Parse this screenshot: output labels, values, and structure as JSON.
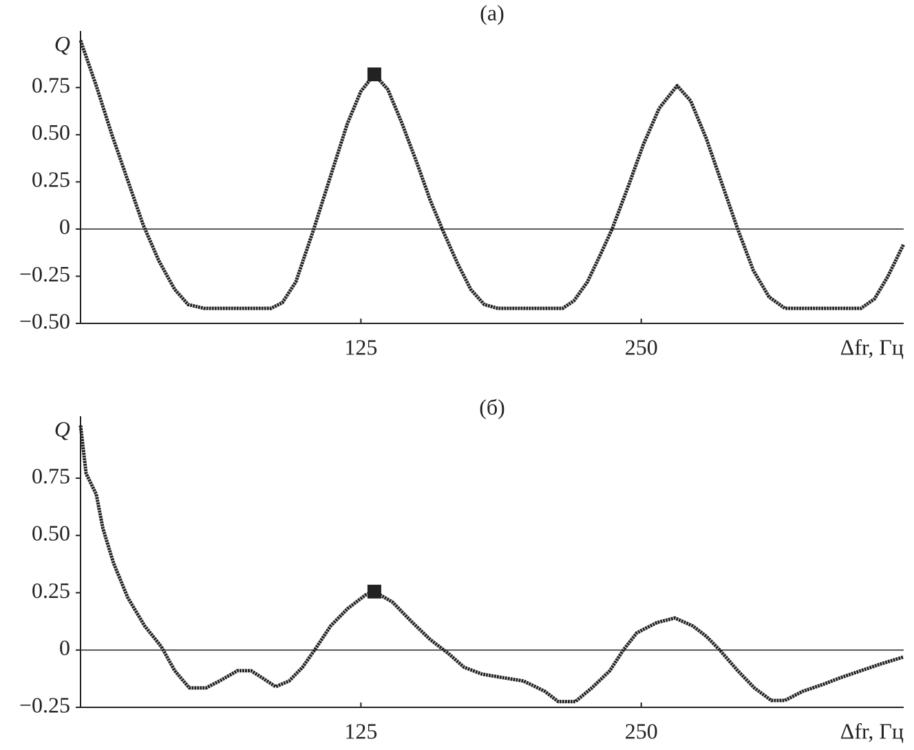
{
  "chart_data": [
    {
      "type": "line",
      "title": "(a)",
      "y_label": "Q",
      "x_label": "Δfr, Гц",
      "color": "#222222",
      "zero_line": true,
      "grid": false,
      "xlim": [
        0,
        367
      ],
      "xticks": [
        125,
        250
      ],
      "ylim": [
        -0.5,
        1.05
      ],
      "yticks": [
        {
          "value": -0.5,
          "label": "−0.50"
        },
        {
          "value": -0.25,
          "label": "−0.25"
        },
        0,
        0.25,
        {
          "value": 0.5,
          "label": "0.50"
        },
        0.75
      ],
      "x": [
        0,
        7,
        14,
        21,
        28,
        35,
        42,
        48,
        55,
        70,
        85,
        90,
        96,
        104,
        112,
        119,
        125,
        131,
        137,
        143,
        150,
        156,
        162,
        168,
        174,
        180,
        186,
        200,
        215,
        220,
        226,
        232,
        237,
        244,
        251,
        258,
        266,
        272,
        279,
        286,
        293,
        300,
        307,
        314,
        330,
        348,
        354,
        360,
        367
      ],
      "values": [
        1.0,
        0.76,
        0.5,
        0.26,
        0.02,
        -0.17,
        -0.32,
        -0.4,
        -0.42,
        -0.42,
        -0.42,
        -0.39,
        -0.28,
        0,
        0.3,
        0.56,
        0.73,
        0.82,
        0.74,
        0.57,
        0.35,
        0.15,
        -0.02,
        -0.18,
        -0.32,
        -0.4,
        -0.42,
        -0.42,
        -0.42,
        -0.38,
        -0.28,
        -0.13,
        0,
        0.22,
        0.45,
        0.64,
        0.76,
        0.68,
        0.48,
        0.24,
        0,
        -0.22,
        -0.36,
        -0.42,
        -0.42,
        -0.42,
        -0.37,
        -0.25,
        -0.08
      ],
      "marker": {
        "x": 131,
        "y": 0.82
      }
    },
    {
      "type": "line",
      "title": "(б)",
      "y_label": "Q",
      "x_label": "Δfr, Гц",
      "color": "#222222",
      "zero_line": true,
      "grid": false,
      "xlim": [
        0,
        367
      ],
      "xticks": [
        125,
        250
      ],
      "ylim": [
        -0.25,
        1.02
      ],
      "yticks": [
        {
          "value": -0.25,
          "label": "−0.25"
        },
        0,
        0.25,
        {
          "value": 0.5,
          "label": "0.50"
        },
        0.75
      ],
      "x": [
        0,
        2.5,
        7,
        10,
        14.7,
        21,
        28.6,
        36,
        42,
        48.5,
        56,
        62,
        70,
        76,
        80.8,
        87,
        93,
        99,
        105.4,
        111.5,
        119,
        127,
        131,
        139,
        148,
        156,
        164,
        171,
        179,
        188,
        197.5,
        207,
        213,
        220.6,
        228,
        236,
        242,
        248,
        257,
        265,
        273,
        279,
        285,
        293,
        300.4,
        308,
        314,
        322,
        331,
        339,
        348,
        357,
        367
      ],
      "values": [
        0.98,
        0.77,
        0.68,
        0.53,
        0.38,
        0.23,
        0.105,
        0.015,
        -0.09,
        -0.165,
        -0.165,
        -0.135,
        -0.09,
        -0.09,
        -0.12,
        -0.16,
        -0.135,
        -0.075,
        0.015,
        0.105,
        0.18,
        0.24,
        0.255,
        0.21,
        0.12,
        0.045,
        -0.015,
        -0.075,
        -0.105,
        -0.12,
        -0.135,
        -0.18,
        -0.225,
        -0.225,
        -0.165,
        -0.09,
        0,
        0.075,
        0.12,
        0.14,
        0.105,
        0.06,
        0,
        -0.09,
        -0.165,
        -0.22,
        -0.22,
        -0.18,
        -0.15,
        -0.12,
        -0.09,
        -0.06,
        -0.03
      ],
      "marker": {
        "x": 131,
        "y": 0.255
      }
    }
  ]
}
